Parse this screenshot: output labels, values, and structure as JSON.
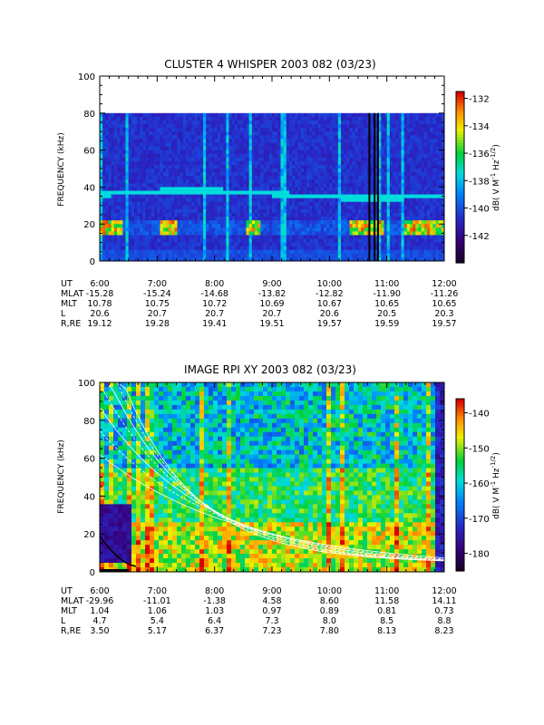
{
  "chart_data": [
    {
      "type": "heatmap",
      "title": "CLUSTER 4 WHISPER 2003 082 (03/23)",
      "ylabel": "FREQUENCY (kHz)",
      "ylim": [
        0,
        100
      ],
      "yticks": [
        0,
        20,
        40,
        60,
        80,
        100
      ],
      "data_ceiling_khz": 80,
      "xticks": [
        "6:00",
        "7:00",
        "8:00",
        "9:00",
        "10:00",
        "11:00",
        "12:00"
      ],
      "colorbar": {
        "label": "dB( V M",
        "label_sup1": "-1",
        "label_mid": " Hz",
        "label_sup2": "-1/2",
        "label_end": ")",
        "range": [
          -144,
          -131.5
        ],
        "ticks": [
          -132,
          -134,
          -136,
          -138,
          -140,
          -142
        ]
      },
      "features": {
        "upper_line_khz": 36,
        "lower_band_khz": 18
      },
      "ephemeris": [
        {
          "label": "UT",
          "values": [
            "6:00",
            "7:00",
            "8:00",
            "9:00",
            "10:00",
            "11:00",
            "12:00"
          ]
        },
        {
          "label": "MLAT",
          "values": [
            "-15.28",
            "-15.24",
            "-14.68",
            "-13.82",
            "-12.82",
            "-11.90",
            "-11.26"
          ]
        },
        {
          "label": "MLT",
          "values": [
            "10.78",
            "10.75",
            "10.72",
            "10.69",
            "10.67",
            "10.65",
            "10.65"
          ]
        },
        {
          "label": "L",
          "values": [
            "20.6",
            "20.7",
            "20.7",
            "20.7",
            "20.6",
            "20.5",
            "20.3"
          ]
        },
        {
          "label": "R,RE",
          "values": [
            "19.12",
            "19.28",
            "19.41",
            "19.51",
            "19.57",
            "19.59",
            "19.57"
          ]
        }
      ]
    },
    {
      "type": "heatmap",
      "title": "IMAGE RPI XY 2003 082 (03/23)",
      "ylabel": "FREQUENCY (kHz)",
      "ylim": [
        0,
        100
      ],
      "yticks": [
        0,
        20,
        40,
        60,
        80,
        100
      ],
      "xticks": [
        "6:00",
        "7:00",
        "8:00",
        "9:00",
        "10:00",
        "11:00",
        "12:00"
      ],
      "colorbar": {
        "label": "dB( V M",
        "label_sup1": "-1",
        "label_mid": " Hz",
        "label_sup2": "-1/2",
        "label_end": ")",
        "range": [
          -185,
          -136
        ],
        "ticks": [
          -140,
          -150,
          -160,
          -170,
          -180
        ]
      },
      "ephemeris": [
        {
          "label": "UT",
          "values": [
            "6:00",
            "7:00",
            "8:00",
            "9:00",
            "10:00",
            "11:00",
            "12:00"
          ]
        },
        {
          "label": "MLAT",
          "values": [
            "-29.96",
            "-11.01",
            "-1.38",
            "4.58",
            "8.60",
            "11.58",
            "14.11"
          ]
        },
        {
          "label": "MLT",
          "values": [
            "1.04",
            "1.06",
            "1.03",
            "0.97",
            "0.89",
            "0.81",
            "0.73"
          ]
        },
        {
          "label": "L",
          "values": [
            "4.7",
            "5.4",
            "6.4",
            "7.3",
            "8.0",
            "8.5",
            "8.8"
          ]
        },
        {
          "label": "R,RE",
          "values": [
            "3.50",
            "5.17",
            "6.37",
            "7.23",
            "7.80",
            "8.13",
            "8.23"
          ]
        }
      ]
    }
  ]
}
